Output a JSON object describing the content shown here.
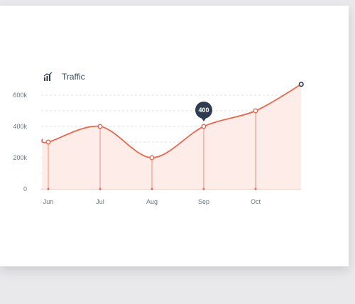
{
  "chart_data": {
    "type": "area",
    "title": "Traffic",
    "icon": "bar-chart-trend-icon",
    "categories": [
      "Jun",
      "Jul",
      "Aug",
      "Sep",
      "Oct"
    ],
    "x": [
      0.0,
      1.0,
      2.0,
      3.0,
      4.0
    ],
    "values": [
      300000,
      400000,
      200000,
      400000,
      500000
    ],
    "series_extended": {
      "start": {
        "x": -0.12,
        "y": 320000
      },
      "end": {
        "x": 4.88,
        "y": 670000
      }
    },
    "yticks": [
      "0",
      "200k",
      "400k",
      "600k"
    ],
    "ytick_values": [
      0,
      200000,
      400000,
      600000
    ],
    "ylim": [
      0,
      600000
    ],
    "grid": true,
    "tooltip": {
      "category": "Sep",
      "label": "400"
    },
    "colors": {
      "line": "#e8674f",
      "fill": "#fdece8",
      "grid": "#d9dde2",
      "text": "#6b7480",
      "tooltip_bg": "#2d3d4f",
      "end_marker": "#2d3d4f"
    }
  }
}
